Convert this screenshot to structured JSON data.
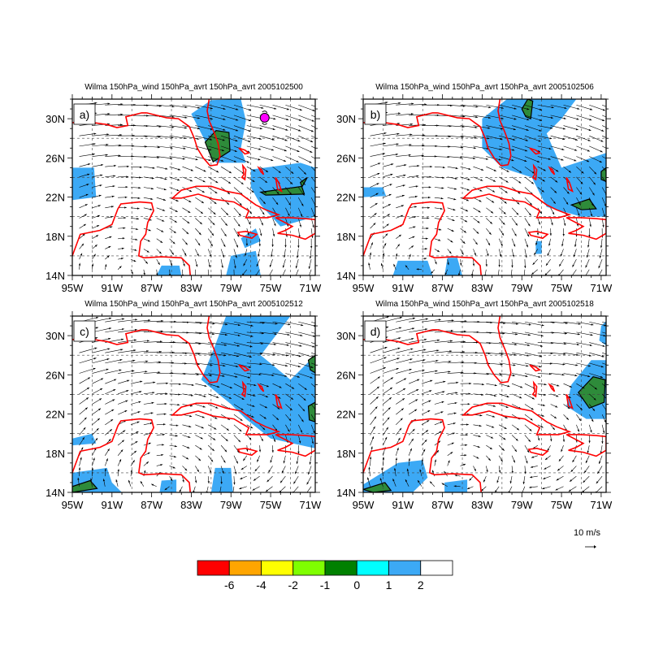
{
  "figure": {
    "panels": [
      {
        "label": "a)",
        "title": "Wilma 150hPa_wind 150hPa_avrt 150hPa_avrt 2005102500",
        "has_storm_marker": true
      },
      {
        "label": "b)",
        "title": "Wilma 150hPa_wind 150hPa_avrt 150hPa_avrt 2005102506",
        "has_storm_marker": false
      },
      {
        "label": "c)",
        "title": "Wilma 150hPa_wind 150hPa_avrt 150hPa_avrt 2005102512",
        "has_storm_marker": false
      },
      {
        "label": "d)",
        "title": "Wilma 150hPa_wind 150hPa_avrt 150hPa_avrt 2005102518",
        "has_storm_marker": false
      }
    ],
    "lon_ticks": [
      "95W",
      "91W",
      "87W",
      "83W",
      "79W",
      "75W",
      "71W"
    ],
    "lat_ticks": [
      "30N",
      "26N",
      "22N",
      "18N",
      "14N"
    ],
    "reference_vector": {
      "label": "10 m/s"
    },
    "colorbar": {
      "labels": [
        "-6",
        "-4",
        "-2",
        "-1",
        "0",
        "1",
        "2"
      ],
      "colors": [
        "#ff0000",
        "#ffa500",
        "#ffff00",
        "#7fff00",
        "#008000",
        "#00ffff",
        "#3ca9f5",
        "#ffffff"
      ]
    },
    "colors": {
      "coastline": "#ff0000",
      "vector": "#000000",
      "shade_light": "#3ca9f5",
      "shade_dark": "#2e8b3a",
      "storm_marker": "#ff00ff"
    }
  }
}
